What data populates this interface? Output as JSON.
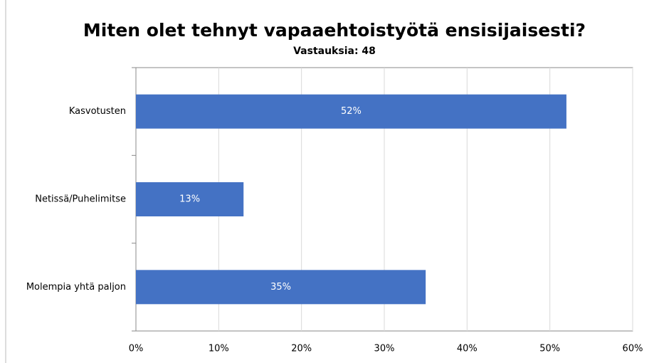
{
  "chart_data": {
    "type": "bar",
    "orientation": "horizontal",
    "title": "Miten olet tehnyt vapaaehtoistyötä ensisijaisesti?",
    "subtitle": "Vastauksia: 48",
    "categories": [
      "Kasvotusten",
      "Netissä/Puhelimitse",
      "Molempia yhtä paljon"
    ],
    "values": [
      52,
      13,
      35
    ],
    "value_labels": [
      "52%",
      "13%",
      "35%"
    ],
    "color": "#4472c4",
    "xlim": [
      0,
      60
    ],
    "xticks": [
      {
        "value": 0,
        "label": "0%"
      },
      {
        "value": 10,
        "label": "10%"
      },
      {
        "value": 20,
        "label": "20%"
      },
      {
        "value": 30,
        "label": "30%"
      },
      {
        "value": 40,
        "label": "40%"
      },
      {
        "value": 50,
        "label": "50%"
      },
      {
        "value": 60,
        "label": "60%"
      }
    ],
    "grid": true
  }
}
